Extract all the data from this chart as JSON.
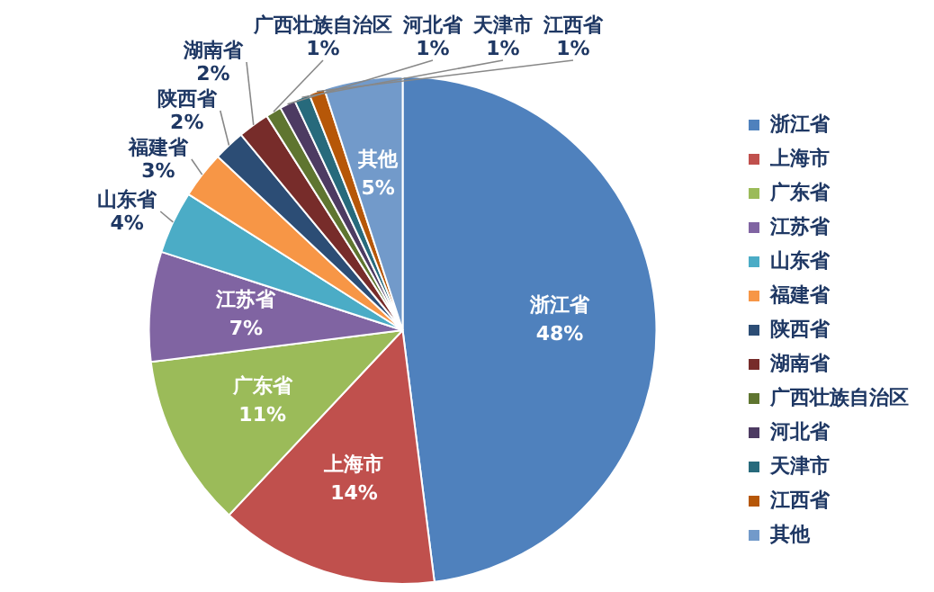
{
  "chart_data": {
    "type": "pie",
    "categories": [
      "浙江省",
      "上海市",
      "广东省",
      "江苏省",
      "山东省",
      "福建省",
      "陕西省",
      "湖南省",
      "广西壮族自治区",
      "河北省",
      "天津市",
      "江西省",
      "其他"
    ],
    "values": [
      48,
      14,
      11,
      7,
      4,
      3,
      2,
      2,
      1,
      1,
      1,
      1,
      5
    ],
    "value_labels": [
      "48%",
      "14%",
      "11%",
      "7%",
      "4%",
      "3%",
      "2%",
      "2%",
      "1%",
      "1%",
      "1%",
      "1%",
      "5%"
    ],
    "colors": [
      "#4f81bd",
      "#c0504d",
      "#9bbb59",
      "#8064a2",
      "#4bacc6",
      "#f79646",
      "#2c4d75",
      "#772c2a",
      "#5f7530",
      "#4d3b62",
      "#276a7c",
      "#b65708",
      "#729aca"
    ],
    "legend": "right"
  }
}
